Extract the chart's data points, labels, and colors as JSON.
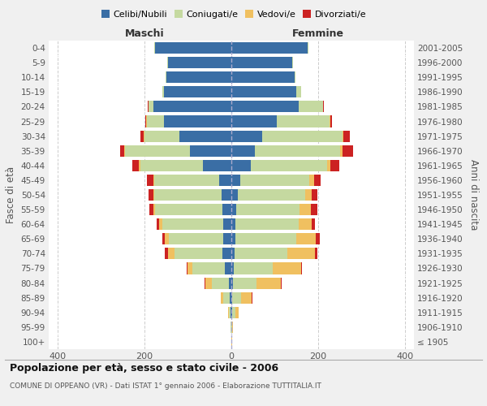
{
  "age_groups": [
    "100+",
    "95-99",
    "90-94",
    "85-89",
    "80-84",
    "75-79",
    "70-74",
    "65-69",
    "60-64",
    "55-59",
    "50-54",
    "45-49",
    "40-44",
    "35-39",
    "30-34",
    "25-29",
    "20-24",
    "15-19",
    "10-14",
    "5-9",
    "0-4"
  ],
  "birth_years": [
    "≤ 1905",
    "1906-1910",
    "1911-1915",
    "1916-1920",
    "1921-1925",
    "1926-1930",
    "1931-1935",
    "1936-1940",
    "1941-1945",
    "1946-1950",
    "1951-1955",
    "1956-1960",
    "1961-1965",
    "1966-1970",
    "1971-1975",
    "1976-1980",
    "1981-1985",
    "1986-1990",
    "1991-1995",
    "1996-2000",
    "2001-2005"
  ],
  "colors": {
    "celibe": "#3A6EA5",
    "coniugato": "#C5D9A0",
    "vedovo": "#F0C060",
    "divorziato": "#CC2222"
  },
  "maschi": {
    "celibe": [
      0,
      0,
      1,
      3,
      5,
      15,
      20,
      18,
      18,
      20,
      22,
      28,
      65,
      95,
      120,
      155,
      180,
      155,
      150,
      145,
      175
    ],
    "coniugato": [
      0,
      1,
      5,
      15,
      40,
      75,
      110,
      125,
      140,
      155,
      155,
      150,
      145,
      150,
      80,
      40,
      10,
      3,
      2,
      2,
      2
    ],
    "vedovo": [
      0,
      0,
      2,
      6,
      15,
      10,
      15,
      10,
      8,
      5,
      3,
      2,
      2,
      1,
      1,
      1,
      1,
      0,
      0,
      0,
      0
    ],
    "divorziato": [
      0,
      0,
      0,
      1,
      1,
      2,
      8,
      5,
      5,
      8,
      10,
      15,
      15,
      10,
      8,
      2,
      1,
      0,
      0,
      0,
      0
    ]
  },
  "femmine": {
    "nubile": [
      0,
      0,
      1,
      2,
      3,
      5,
      8,
      10,
      10,
      12,
      15,
      20,
      45,
      55,
      70,
      105,
      155,
      150,
      145,
      140,
      175
    ],
    "coniugata": [
      0,
      2,
      8,
      20,
      55,
      90,
      120,
      140,
      145,
      145,
      155,
      160,
      175,
      195,
      185,
      120,
      55,
      10,
      3,
      2,
      2
    ],
    "vedova": [
      1,
      2,
      8,
      25,
      55,
      65,
      65,
      45,
      30,
      25,
      15,
      10,
      8,
      5,
      3,
      2,
      1,
      0,
      0,
      0,
      0
    ],
    "divorziata": [
      0,
      0,
      0,
      1,
      2,
      3,
      5,
      8,
      8,
      15,
      12,
      15,
      20,
      25,
      15,
      5,
      2,
      1,
      0,
      0,
      0
    ]
  },
  "xlim": [
    -420,
    420
  ],
  "xticks": [
    -400,
    -200,
    0,
    200,
    400
  ],
  "xticklabels": [
    "400",
    "200",
    "0",
    "200",
    "400"
  ],
  "title": "Popolazione per età, sesso e stato civile - 2006",
  "subtitle": "COMUNE DI OPPEANO (VR) - Dati ISTAT 1° gennaio 2006 - Elaborazione TUTTITALIA.IT",
  "ylabel_left": "Fasce di età",
  "ylabel_right": "Anni di nascita",
  "label_maschi": "Maschi",
  "label_femmine": "Femmine",
  "legend_labels": [
    "Celibi/Nubili",
    "Coniugati/e",
    "Vedovi/e",
    "Divorziati/e"
  ],
  "bg_color": "#F0F0F0",
  "plot_bg": "#FFFFFF"
}
